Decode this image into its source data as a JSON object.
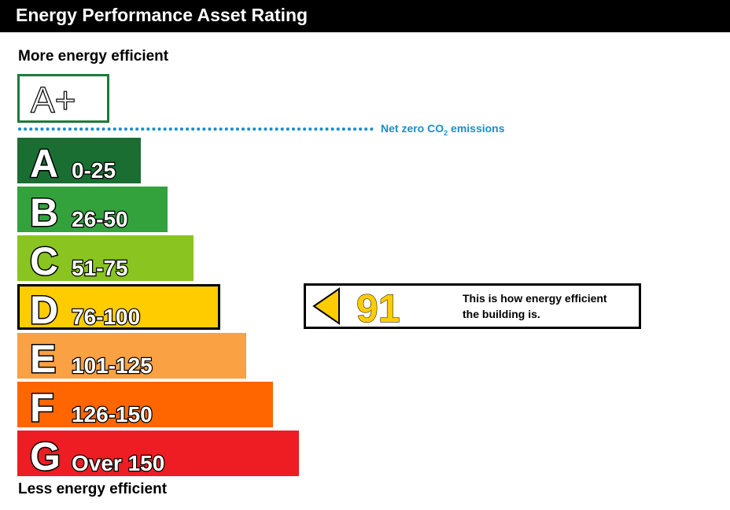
{
  "header": {
    "title": "Energy Performance Asset Rating"
  },
  "labels": {
    "top": "More energy efficient",
    "bottom": "Less energy efficient"
  },
  "aplus": {
    "label": "A+",
    "color": "#1e7a3a"
  },
  "net_zero": {
    "label_main": "Net zero CO",
    "label_sub": "2",
    "label_end": " emissions",
    "color": "#1a8fc9"
  },
  "indicator": {
    "rating": "91",
    "color": "#ffcc00",
    "text_line1": "This is how energy efficient",
    "text_line2": "the building is."
  },
  "chart_data": {
    "type": "bar",
    "title": "Energy Performance Asset Rating",
    "categories": [
      "A",
      "B",
      "C",
      "D",
      "E",
      "F",
      "G"
    ],
    "ranges": [
      "0-25",
      "26-50",
      "51-75",
      "76-100",
      "101-125",
      "126-150",
      "Over 150"
    ],
    "values": [
      25,
      50,
      75,
      100,
      125,
      150,
      175
    ],
    "colors": [
      "#1a6e32",
      "#33a23d",
      "#8ac421",
      "#ffcc00",
      "#f9a143",
      "#ff6600",
      "#ee1c23"
    ],
    "current_band": "D",
    "current_rating": 91
  }
}
